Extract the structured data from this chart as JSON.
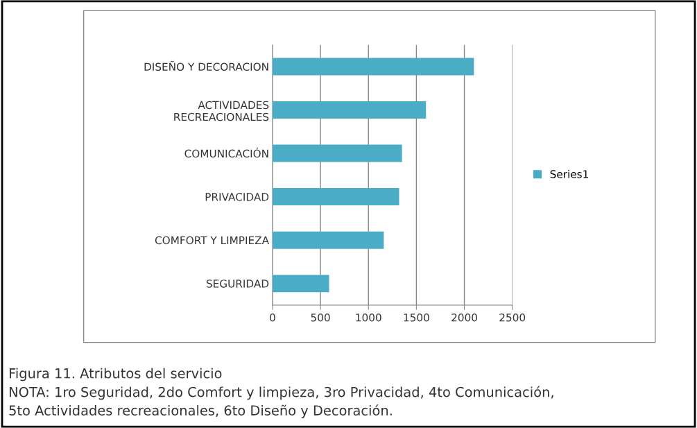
{
  "chart_data": {
    "type": "bar",
    "orientation": "horizontal",
    "categories": [
      "DISEÑO Y DECORACION",
      "ACTIVIDADES\nRECREACIONALES",
      "COMUNICACIÓN",
      "PRIVACIDAD",
      "COMFORT Y LIMPIEZA",
      "SEGURIDAD"
    ],
    "series": [
      {
        "name": "Series1",
        "color": "#4bacc6",
        "values": [
          2100,
          1600,
          1350,
          1320,
          1160,
          590
        ]
      }
    ],
    "xlim": [
      0,
      2500
    ],
    "xticks": [
      0,
      500,
      1000,
      1500,
      2000,
      2500
    ],
    "grid": "x",
    "legend": "right",
    "annotations": [
      "Figura 11. Atributos del servicio",
      "NOTA: 1ro Seguridad, 2do Comfort y limpieza, 3ro Privacidad, 4to Comunicación,",
      "5to Actividades recreacionales, 6to Diseño y Decoración."
    ]
  }
}
